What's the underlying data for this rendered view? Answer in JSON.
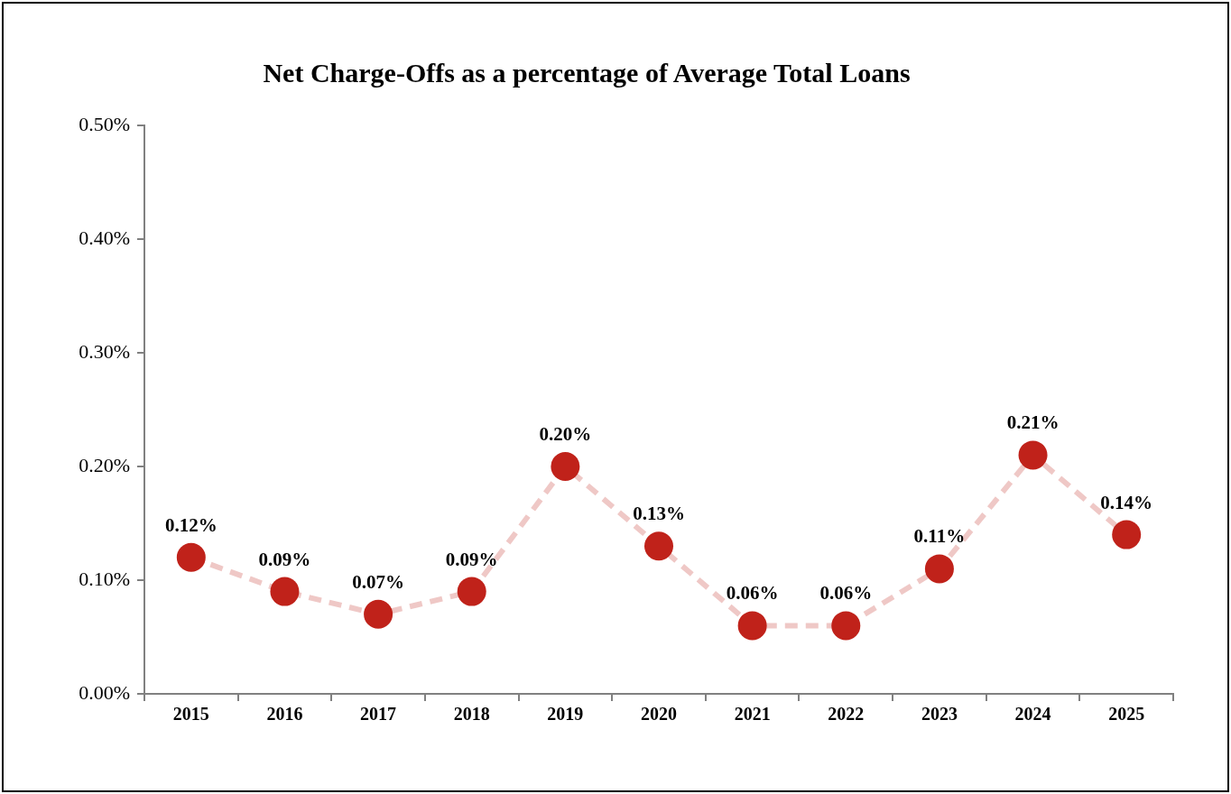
{
  "chart_data": {
    "type": "line",
    "title": "Net Charge-Offs as a percentage of Average Total Loans",
    "categories": [
      "2015",
      "2016",
      "2017",
      "2018",
      "2019",
      "2020",
      "2021",
      "2022",
      "2023",
      "2024",
      "2025"
    ],
    "series": [
      {
        "color": "#c0221a",
        "values": [
          0.12,
          0.09,
          0.07,
          0.09,
          0.2,
          0.13,
          0.06,
          0.06,
          0.11,
          0.21,
          0.14
        ],
        "value_labels": [
          "0.12%",
          "0.09%",
          "0.07%",
          "0.09%",
          "0.20%",
          "0.13%",
          "0.06%",
          "0.06%",
          "0.11%",
          "0.21%",
          "0.14%"
        ]
      }
    ],
    "ylim": [
      0,
      0.5
    ],
    "yticks": [
      {
        "value": 0,
        "label": "0.00%"
      },
      {
        "value": 0.1,
        "label": "0.10%"
      },
      {
        "value": 0.2,
        "label": "0.20%"
      },
      {
        "value": 0.3,
        "label": "0.30%"
      },
      {
        "value": 0.4,
        "label": "0.40%"
      },
      {
        "value": 0.5,
        "label": "0.50%"
      }
    ],
    "grid": false,
    "legend": false,
    "marker": "circle",
    "line_style": "dashed"
  }
}
